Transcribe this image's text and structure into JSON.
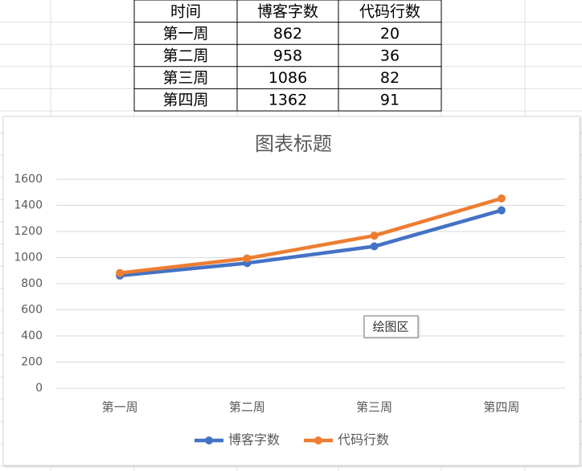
{
  "table": {
    "header": [
      "时间",
      "博客字数",
      "代码行数"
    ],
    "rows": [
      [
        "第一周",
        "862",
        "20"
      ],
      [
        "第二周",
        "958",
        "36"
      ],
      [
        "第三周",
        "1086",
        "82"
      ],
      [
        "第四周",
        "1362",
        "91"
      ]
    ]
  },
  "chart_data": {
    "type": "line",
    "stacked": true,
    "title": "图表标题",
    "categories": [
      "第一周",
      "第二周",
      "第三周",
      "第四周"
    ],
    "series": [
      {
        "name": "博客字数",
        "color": "#4472c4",
        "values": [
          862,
          958,
          1086,
          1362
        ]
      },
      {
        "name": "代码行数",
        "color": "#ed7d31",
        "values": [
          20,
          36,
          82,
          91
        ]
      }
    ],
    "ylim": [
      0,
      1600
    ],
    "yticks": [
      0,
      200,
      400,
      600,
      800,
      1000,
      1200,
      1400,
      1600
    ],
    "grid": true,
    "legend": "bottom"
  },
  "tooltip": "绘图区"
}
